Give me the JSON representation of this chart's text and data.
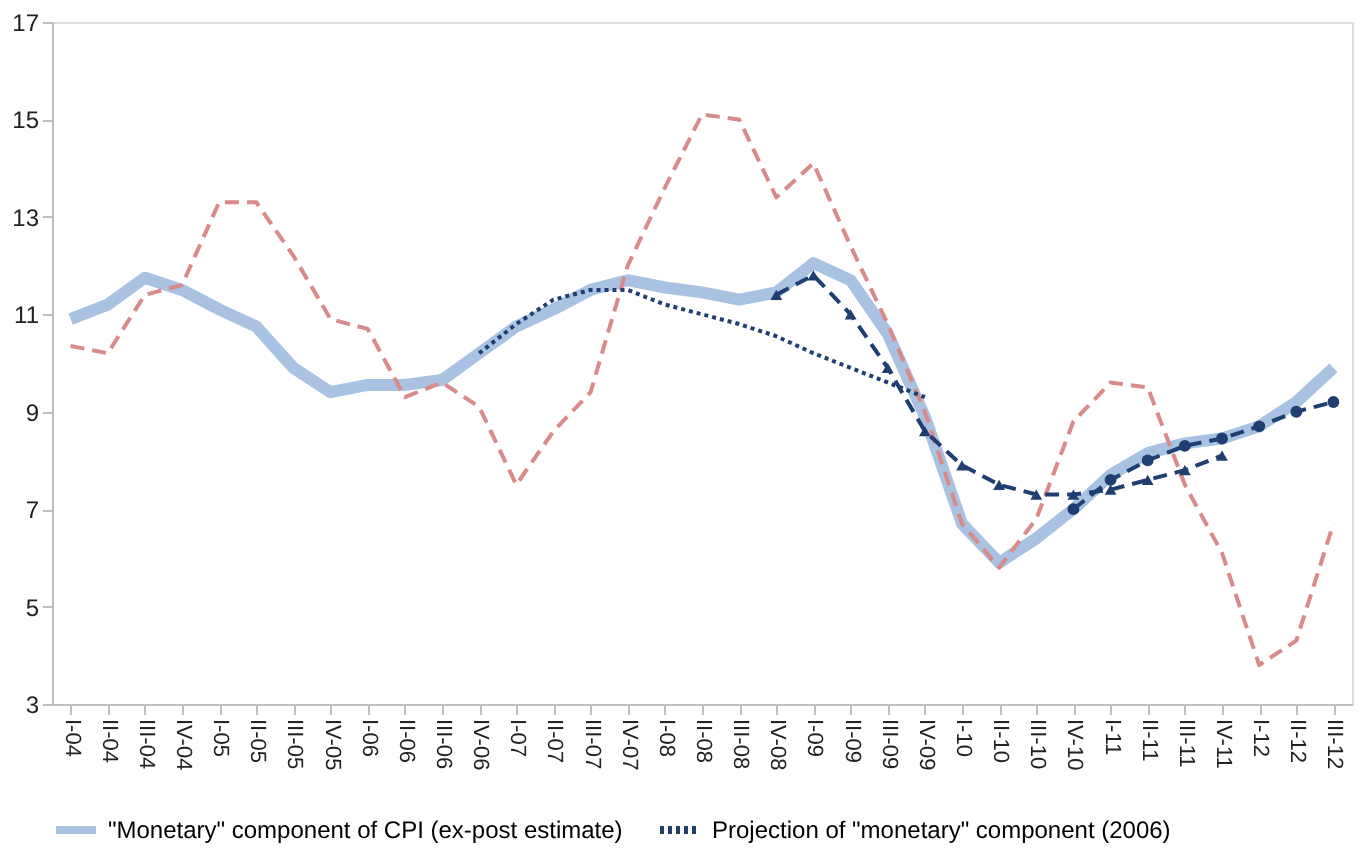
{
  "chart_data": {
    "type": "line",
    "categories": [
      "I-04",
      "II-04",
      "III-04",
      "IV-04",
      "I-05",
      "II-05",
      "III-05",
      "IV-05",
      "I-06",
      "II-06",
      "III-06",
      "IV-06",
      "I-07",
      "II-07",
      "III-07",
      "IV-07",
      "I-08",
      "II-08",
      "III-08",
      "IV-08",
      "I-09",
      "II-09",
      "III-09",
      "IV-09",
      "I-10",
      "II-10",
      "III-10",
      "IV-10",
      "I-11",
      "II-11",
      "III-11",
      "IV-11",
      "I-12",
      "II-12",
      "III-12"
    ],
    "series": [
      {
        "name": "\"Monetary\" component of CPI (ex-post estimate)",
        "color": "#a9c2e2",
        "line_style": "solid",
        "marker": "none",
        "values": [
          10.9,
          11.2,
          11.75,
          11.5,
          11.1,
          10.75,
          9.9,
          9.4,
          9.55,
          9.55,
          9.65,
          10.2,
          10.75,
          11.1,
          11.5,
          11.7,
          11.55,
          11.45,
          11.3,
          11.45,
          12.05,
          11.7,
          10.6,
          8.9,
          6.7,
          5.9,
          6.4,
          7.0,
          7.7,
          8.15,
          8.35,
          8.45,
          8.7,
          9.2,
          9.9
        ]
      },
      {
        "color": "#d98a8a",
        "line_style": "dashed",
        "marker": "none",
        "values": [
          10.35,
          10.2,
          11.4,
          11.6,
          13.3,
          13.3,
          12.2,
          10.9,
          10.7,
          9.3,
          9.6,
          9.1,
          7.5,
          8.6,
          9.4,
          12.0,
          13.6,
          15.1,
          15.0,
          13.4,
          14.1,
          12.4,
          10.8,
          9.0,
          6.7,
          5.8,
          6.8,
          8.8,
          9.6,
          9.5,
          7.5,
          6.1,
          3.8,
          4.3,
          6.7
        ]
      },
      {
        "name": "Projection of \"monetary\" component (2006)",
        "color": "#1f3f73",
        "line_style": "dotted",
        "marker": "none",
        "values": [
          null,
          null,
          null,
          null,
          null,
          null,
          null,
          null,
          null,
          null,
          null,
          10.2,
          10.8,
          11.3,
          11.5,
          11.5,
          11.2,
          11.0,
          10.8,
          10.55,
          10.2,
          9.9,
          9.6,
          9.3,
          null,
          null,
          null,
          null,
          null,
          null,
          null,
          null,
          null,
          null,
          null
        ]
      },
      {
        "color": "#1f3f73",
        "line_style": "dashed",
        "marker": "triangle",
        "values": [
          null,
          null,
          null,
          null,
          null,
          null,
          null,
          null,
          null,
          null,
          null,
          null,
          null,
          null,
          null,
          null,
          null,
          null,
          null,
          11.4,
          11.8,
          11.0,
          9.9,
          8.6,
          7.9,
          7.5,
          7.3,
          7.3,
          7.4,
          7.6,
          7.8,
          8.1,
          null,
          null,
          null
        ]
      },
      {
        "color": "#1f3f73",
        "line_style": "dashed",
        "marker": "circle",
        "values": [
          null,
          null,
          null,
          null,
          null,
          null,
          null,
          null,
          null,
          null,
          null,
          null,
          null,
          null,
          null,
          null,
          null,
          null,
          null,
          null,
          null,
          null,
          null,
          null,
          null,
          null,
          null,
          7.0,
          7.6,
          8.0,
          8.3,
          8.45,
          8.7,
          9.0,
          9.2
        ]
      }
    ],
    "ylim": [
      3,
      17
    ],
    "yticks": [
      3,
      5,
      7,
      9,
      11,
      13,
      15,
      17
    ],
    "grid": false,
    "legend": "bottom"
  }
}
